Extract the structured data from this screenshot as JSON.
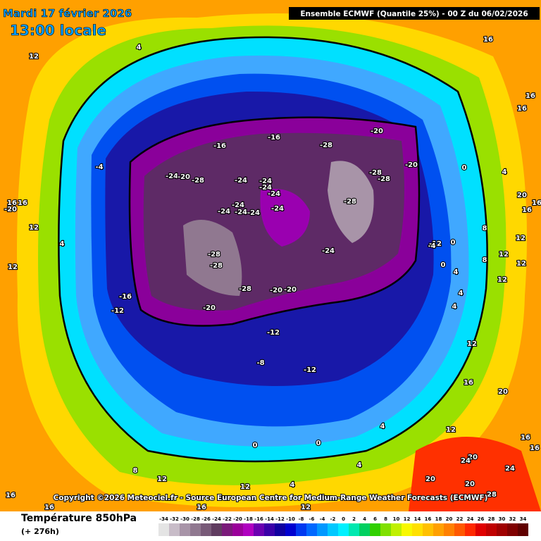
{
  "header": {
    "date": "Mardi 17 février 2026",
    "time": "13:00 locale",
    "title": "Ensemble ECMWF  (Quantile 25%) - 00 Z du 06/02/2026"
  },
  "copyright": "Copyright ©2026 Meteociel.fr - Source European Centre for Medium-Range Weather Forecasts (ECMWF)",
  "legend": {
    "title": "Température 850hPa",
    "lead_time": "(+ 276h)",
    "levels": [
      -34,
      -32,
      -30,
      -28,
      -26,
      -24,
      -22,
      -20,
      -18,
      -16,
      -14,
      -12,
      -10,
      -8,
      -6,
      -4,
      -2,
      0,
      2,
      4,
      6,
      8,
      10,
      12,
      14,
      16,
      18,
      20,
      22,
      24,
      26,
      28,
      30,
      32,
      34
    ],
    "colors": [
      "#e4e4e4",
      "#c8bcc8",
      "#a894a8",
      "#907890",
      "#785a78",
      "#603c60",
      "#7a1a7a",
      "#9a009a",
      "#b000c0",
      "#6a00b0",
      "#3a00a8",
      "#1000a0",
      "#0000d0",
      "#0038f0",
      "#0068ff",
      "#0098ff",
      "#00c8ff",
      "#00f0ff",
      "#00e8b0",
      "#00d060",
      "#30d000",
      "#80e000",
      "#c0f000",
      "#f8f800",
      "#ffe000",
      "#ffc000",
      "#ffa000",
      "#ff8000",
      "#ff5800",
      "#ff2800",
      "#e00000",
      "#c00000",
      "#a00000",
      "#800000",
      "#600000"
    ]
  },
  "map_labels": [
    4,
    12,
    16,
    16,
    16,
    -16,
    -16,
    -20,
    -28,
    -20,
    0,
    4,
    20,
    16,
    16,
    -24,
    -20,
    -28,
    -24,
    -24,
    -24,
    -24,
    -28,
    -28,
    -28,
    -24,
    -24,
    -24,
    -24,
    -24,
    -24,
    -28,
    -28,
    -28,
    -20,
    -20,
    -16,
    -12,
    -20,
    -12,
    -8,
    -12,
    -4,
    16,
    16,
    -20,
    12,
    4,
    12,
    0,
    -12,
    -4,
    0,
    4,
    8,
    12,
    12,
    12,
    8,
    12,
    4,
    4,
    12,
    16,
    20,
    12,
    16,
    16,
    20,
    24,
    24,
    20,
    28,
    20,
    0,
    0,
    4,
    4,
    8,
    12,
    12,
    4,
    12,
    16,
    16,
    16
  ]
}
